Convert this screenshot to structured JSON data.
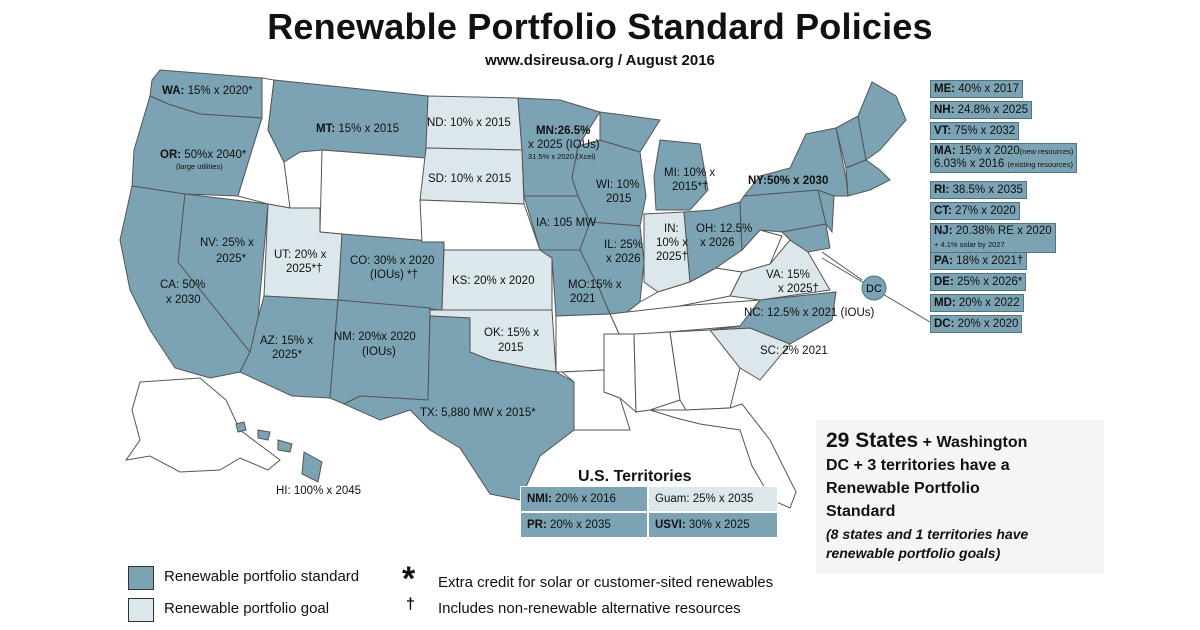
{
  "title": "Renewable Portfolio Standard Policies",
  "subtitle": "www.dsireusa.org / August 2016",
  "colors": {
    "standard": "#7ba3b4",
    "goal": "#dce7ec",
    "none": "#ffffff",
    "border": "#4d7585"
  },
  "states": {
    "WA": "15% x 2020*",
    "OR_main": "50%x 2040*",
    "OR_note": "(large utilities)",
    "MT": "15% x 2015",
    "ND": "10% x 2015",
    "MN_1": "MN:26.5%",
    "MN_2": "x 2025 (IOUs)",
    "MN_3": "31.5% x 2020 (Xcel)",
    "SD": "SD: 10% x 2015",
    "WI": "WI: 10%",
    "WI_2": "2015",
    "MI": "MI: 10% x",
    "MI_2": "2015*†",
    "NY": "NY:50% x 2030",
    "IA": "IA: 105 MW",
    "IL": "IL: 25%",
    "IL_2": "x 2026",
    "IN": "IN:",
    "IN_2": "10% x",
    "IN_3": "2025†",
    "OH": "OH: 12.5%",
    "OH_2": "x 2026",
    "NV": "NV: 25% x",
    "NV_2": "2025*",
    "UT": "UT: 20% x",
    "UT_2": "2025*†",
    "CO": "CO: 30% x 2020",
    "CO_2": "(IOUs) *†",
    "KS": "KS: 20% x 2020",
    "MO": "MO:15% x",
    "MO_2": "2021",
    "VA": "VA: 15%",
    "VA_2": "x 2025†",
    "CA": "CA: 50%",
    "CA_2": "x 2030",
    "NC": "NC: 12.5% x 2021 (IOUs)",
    "AZ": "AZ: 15% x",
    "AZ_2": "2025*",
    "NM": "NM: 20%x 2020",
    "NM_2": "(IOUs)",
    "OK": "OK: 15% x",
    "OK_2": "2015",
    "SC": "SC: 2% 2021",
    "TX": "TX: 5,880 MW x 2015*",
    "HI": "HI: 100% x 2045",
    "DC_circle": "DC"
  },
  "northeast": [
    {
      "abbr": "ME:",
      "text": " 40% x 2017"
    },
    {
      "abbr": "NH:",
      "text": " 24.8% x 2025"
    },
    {
      "abbr": "VT:",
      "text": " 75% x 2032"
    },
    {
      "abbr": "MA:",
      "text": " 15% x 2020",
      "sm": "(new resources)",
      "line2": "6.03% x 2016 ",
      "sm2": "(existing resources)"
    },
    {
      "abbr": "RI:",
      "text": " 38.5% x 2035"
    },
    {
      "abbr": "CT:",
      "text": " 27% x 2020"
    },
    {
      "abbr": "NJ:",
      "text": " 20.38% RE x 2020",
      "line2sm": "+ 4.1% solar by 2027"
    },
    {
      "abbr": "PA:",
      "text": " 18% x 2021†"
    },
    {
      "abbr": "DE:",
      "text": " 25% x 2026*"
    },
    {
      "abbr": "MD:",
      "text": " 20% x 2022"
    },
    {
      "abbr": "DC:",
      "text": " 20% x 2020"
    }
  ],
  "territories": {
    "title": "U.S. Territories",
    "NMI": {
      "abbr": "NMI:",
      "text": " 20% x 2016"
    },
    "Guam": {
      "text": "Guam: 25% x 2035"
    },
    "PR": {
      "abbr": "PR:",
      "text": " 20% x 2035"
    },
    "USVI": {
      "abbr": "USVI:",
      "text": " 30% x 2025"
    }
  },
  "summary": {
    "big": "29 States",
    "rest1": " + Washington",
    "line2": "DC + 3 territories have a",
    "line3": "Renewable Portfolio",
    "line4": "Standard",
    "note1": "(8 states and 1 territories have",
    "note2": "renewable portfolio goals)"
  },
  "legend": {
    "standard": "Renewable portfolio standard",
    "goal": "Renewable portfolio goal",
    "asterisk": "*",
    "asterisk_text": "Extra credit for solar or customer-sited renewables",
    "dagger": "†",
    "dagger_text": "Includes non-renewable alternative resources"
  }
}
